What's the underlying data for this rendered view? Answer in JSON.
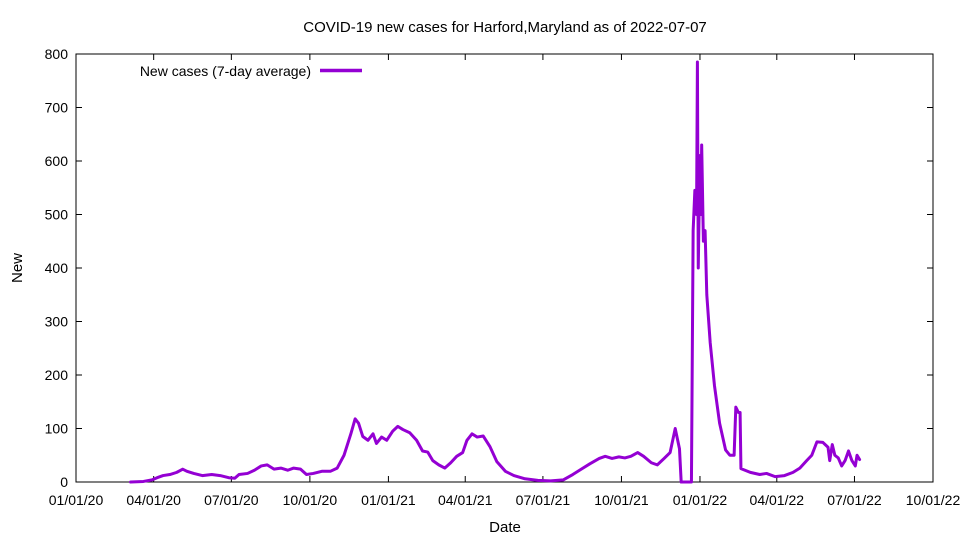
{
  "chart_data": {
    "type": "line",
    "title": "COVID-19 new cases for Harford,Maryland as of 2022-07-07",
    "xlabel": "Date",
    "ylabel": "New",
    "x_ticks": [
      "01/01/20",
      "04/01/20",
      "07/01/20",
      "10/01/20",
      "01/01/21",
      "04/01/21",
      "07/01/21",
      "10/01/21",
      "01/01/22",
      "04/01/22",
      "07/01/22",
      "10/01/22"
    ],
    "y_ticks": [
      "0",
      "100",
      "200",
      "300",
      "400",
      "500",
      "600",
      "700",
      "800"
    ],
    "xlim": [
      "2020-01-01",
      "2022-10-01"
    ],
    "ylim": [
      0,
      800
    ],
    "grid": false,
    "legend_position": "top-left",
    "series": [
      {
        "name": "New cases (7-day average)",
        "color": "#9400d3",
        "points": [
          [
            "2020-03-05",
            0
          ],
          [
            "2020-03-20",
            1
          ],
          [
            "2020-03-30",
            4
          ],
          [
            "2020-04-05",
            8
          ],
          [
            "2020-04-12",
            12
          ],
          [
            "2020-04-20",
            14
          ],
          [
            "2020-04-28",
            18
          ],
          [
            "2020-05-05",
            24
          ],
          [
            "2020-05-10",
            20
          ],
          [
            "2020-05-18",
            16
          ],
          [
            "2020-05-28",
            12
          ],
          [
            "2020-06-08",
            14
          ],
          [
            "2020-06-18",
            12
          ],
          [
            "2020-06-28",
            8
          ],
          [
            "2020-07-05",
            7
          ],
          [
            "2020-07-10",
            14
          ],
          [
            "2020-07-20",
            16
          ],
          [
            "2020-07-28",
            22
          ],
          [
            "2020-08-05",
            30
          ],
          [
            "2020-08-12",
            32
          ],
          [
            "2020-08-20",
            24
          ],
          [
            "2020-08-28",
            26
          ],
          [
            "2020-09-05",
            22
          ],
          [
            "2020-09-12",
            26
          ],
          [
            "2020-09-20",
            24
          ],
          [
            "2020-09-27",
            14
          ],
          [
            "2020-10-05",
            16
          ],
          [
            "2020-10-15",
            20
          ],
          [
            "2020-10-25",
            20
          ],
          [
            "2020-11-02",
            26
          ],
          [
            "2020-11-10",
            50
          ],
          [
            "2020-11-18",
            90
          ],
          [
            "2020-11-23",
            118
          ],
          [
            "2020-11-27",
            110
          ],
          [
            "2020-12-02",
            85
          ],
          [
            "2020-12-08",
            78
          ],
          [
            "2020-12-14",
            90
          ],
          [
            "2020-12-18",
            72
          ],
          [
            "2020-12-24",
            84
          ],
          [
            "2020-12-30",
            78
          ],
          [
            "2021-01-06",
            95
          ],
          [
            "2021-01-12",
            104
          ],
          [
            "2021-01-18",
            98
          ],
          [
            "2021-01-26",
            92
          ],
          [
            "2021-02-03",
            78
          ],
          [
            "2021-02-10",
            58
          ],
          [
            "2021-02-16",
            56
          ],
          [
            "2021-02-22",
            40
          ],
          [
            "2021-03-01",
            32
          ],
          [
            "2021-03-08",
            26
          ],
          [
            "2021-03-15",
            36
          ],
          [
            "2021-03-22",
            48
          ],
          [
            "2021-03-29",
            55
          ],
          [
            "2021-04-03",
            78
          ],
          [
            "2021-04-09",
            90
          ],
          [
            "2021-04-15",
            84
          ],
          [
            "2021-04-22",
            86
          ],
          [
            "2021-04-30",
            66
          ],
          [
            "2021-05-08",
            38
          ],
          [
            "2021-05-18",
            20
          ],
          [
            "2021-05-28",
            12
          ],
          [
            "2021-06-10",
            6
          ],
          [
            "2021-06-25",
            3
          ],
          [
            "2021-07-10",
            2
          ],
          [
            "2021-07-25",
            4
          ],
          [
            "2021-08-05",
            14
          ],
          [
            "2021-08-15",
            24
          ],
          [
            "2021-08-25",
            34
          ],
          [
            "2021-09-05",
            44
          ],
          [
            "2021-09-12",
            48
          ],
          [
            "2021-09-20",
            44
          ],
          [
            "2021-09-28",
            47
          ],
          [
            "2021-10-05",
            45
          ],
          [
            "2021-10-12",
            48
          ],
          [
            "2021-10-20",
            55
          ],
          [
            "2021-10-27",
            48
          ],
          [
            "2021-11-05",
            36
          ],
          [
            "2021-11-12",
            32
          ],
          [
            "2021-11-20",
            44
          ],
          [
            "2021-11-27",
            55
          ],
          [
            "2021-12-03",
            100
          ],
          [
            "2021-12-08",
            62
          ],
          [
            "2021-12-10",
            0
          ],
          [
            "2021-12-16",
            0
          ],
          [
            "2021-12-22",
            0
          ],
          [
            "2021-12-24",
            470
          ],
          [
            "2021-12-26",
            545
          ],
          [
            "2021-12-28",
            500
          ],
          [
            "2021-12-29",
            785
          ],
          [
            "2021-12-30",
            400
          ],
          [
            "2022-01-01",
            610
          ],
          [
            "2022-01-02",
            500
          ],
          [
            "2022-01-03",
            630
          ],
          [
            "2022-01-05",
            450
          ],
          [
            "2022-01-07",
            470
          ],
          [
            "2022-01-09",
            350
          ],
          [
            "2022-01-13",
            260
          ],
          [
            "2022-01-18",
            180
          ],
          [
            "2022-01-24",
            110
          ],
          [
            "2022-01-31",
            60
          ],
          [
            "2022-02-05",
            50
          ],
          [
            "2022-02-10",
            50
          ],
          [
            "2022-02-12",
            140
          ],
          [
            "2022-02-15",
            130
          ],
          [
            "2022-02-17",
            130
          ],
          [
            "2022-02-18",
            25
          ],
          [
            "2022-03-01",
            18
          ],
          [
            "2022-03-12",
            14
          ],
          [
            "2022-03-20",
            16
          ],
          [
            "2022-03-30",
            10
          ],
          [
            "2022-04-10",
            12
          ],
          [
            "2022-04-20",
            18
          ],
          [
            "2022-04-28",
            26
          ],
          [
            "2022-05-06",
            40
          ],
          [
            "2022-05-12",
            50
          ],
          [
            "2022-05-18",
            75
          ],
          [
            "2022-05-25",
            74
          ],
          [
            "2022-05-31",
            65
          ],
          [
            "2022-06-02",
            40
          ],
          [
            "2022-06-05",
            70
          ],
          [
            "2022-06-08",
            50
          ],
          [
            "2022-06-12",
            45
          ],
          [
            "2022-06-16",
            30
          ],
          [
            "2022-06-20",
            40
          ],
          [
            "2022-06-24",
            58
          ],
          [
            "2022-06-28",
            40
          ],
          [
            "2022-07-02",
            30
          ],
          [
            "2022-07-04",
            50
          ],
          [
            "2022-07-07",
            42
          ]
        ]
      }
    ]
  }
}
